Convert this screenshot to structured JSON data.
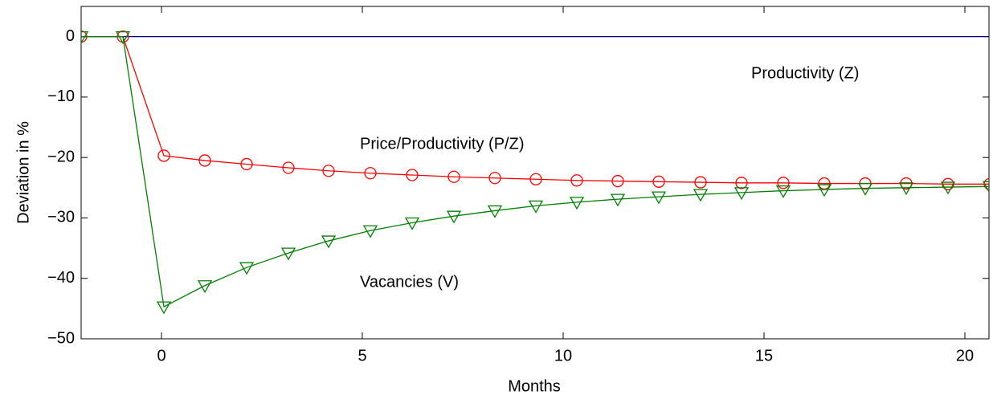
{
  "chart_data": {
    "type": "line",
    "x_label": "Months",
    "y_label": "Deviation in %",
    "x": [
      -2,
      -0.96,
      0.06,
      1.08,
      2.12,
      3.16,
      4.16,
      5.2,
      6.24,
      7.28,
      8.3,
      9.32,
      10.34,
      11.36,
      12.38,
      13.42,
      14.44,
      15.48,
      16.5,
      17.52,
      18.54,
      19.58,
      20.62
    ],
    "series": [
      {
        "name": "Productivity (Z)",
        "color": "#00008b",
        "marker": "none",
        "values": [
          0,
          0,
          0,
          0,
          0,
          0,
          0,
          0,
          0,
          0,
          0,
          0,
          0,
          0,
          0,
          0,
          0,
          0,
          0,
          0,
          0,
          0,
          0
        ]
      },
      {
        "name": "Price/Productivity (P/Z)",
        "color": "#ff0000",
        "marker": "circle",
        "values": [
          0,
          0,
          -19.7,
          -20.5,
          -21.1,
          -21.7,
          -22.2,
          -22.6,
          -22.9,
          -23.2,
          -23.4,
          -23.6,
          -23.8,
          -23.9,
          -24.0,
          -24.1,
          -24.2,
          -24.2,
          -24.3,
          -24.3,
          -24.3,
          -24.4,
          -24.4
        ]
      },
      {
        "name": "Vacancies (V)",
        "color": "#008000",
        "marker": "triangle-down",
        "values": [
          0,
          0,
          -44.7,
          -41.2,
          -38.2,
          -35.8,
          -33.8,
          -32.1,
          -30.8,
          -29.7,
          -28.8,
          -28.0,
          -27.4,
          -26.9,
          -26.5,
          -26.1,
          -25.8,
          -25.5,
          -25.3,
          -25.1,
          -25.0,
          -24.9,
          -24.8
        ]
      }
    ],
    "xlim": [
      -2,
      20.6
    ],
    "ylim": [
      -50,
      5
    ],
    "xticks": [
      0,
      5,
      10,
      15,
      20
    ],
    "yticks": [
      {
        "value": -50,
        "label": "−50"
      },
      {
        "value": -40,
        "label": "−40"
      },
      {
        "value": -30,
        "label": "−30"
      },
      {
        "value": -20,
        "label": "−20"
      },
      {
        "value": -10,
        "label": "−10"
      },
      0
    ]
  }
}
